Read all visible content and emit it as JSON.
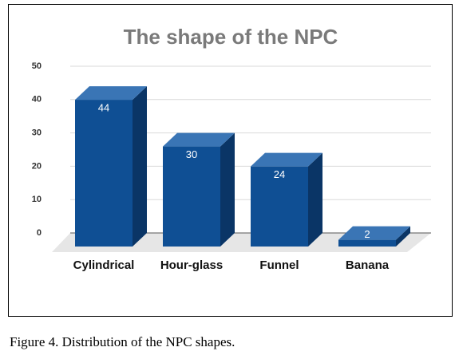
{
  "chart_data": {
    "type": "bar3d",
    "title": "The shape of the NPC",
    "categories": [
      "Cylindrical",
      "Hour-glass",
      "Funnel",
      "Banana"
    ],
    "values": [
      44,
      30,
      24,
      2
    ],
    "color": "#0f4f94",
    "ylim": [
      0,
      50
    ],
    "yticks": [
      0,
      10,
      20,
      30,
      40,
      50
    ],
    "grid": true
  },
  "caption": "Figure 4. Distribution of the NPC shapes."
}
